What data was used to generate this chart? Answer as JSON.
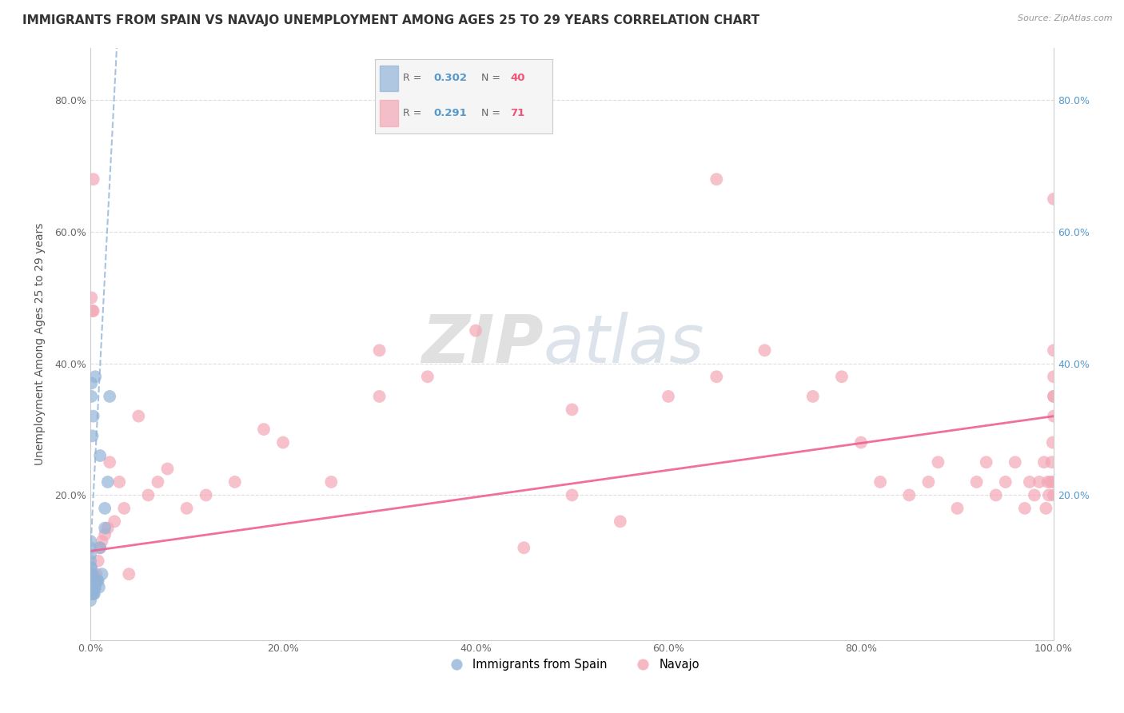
{
  "title": "IMMIGRANTS FROM SPAIN VS NAVAJO UNEMPLOYMENT AMONG AGES 25 TO 29 YEARS CORRELATION CHART",
  "source": "Source: ZipAtlas.com",
  "ylabel": "Unemployment Among Ages 25 to 29 years",
  "xlim": [
    0.0,
    1.0
  ],
  "ylim": [
    -0.02,
    0.88
  ],
  "xticks": [
    0.0,
    0.2,
    0.4,
    0.6,
    0.8,
    1.0
  ],
  "xticklabels": [
    "0.0%",
    "20.0%",
    "40.0%",
    "60.0%",
    "80.0%",
    "100.0%"
  ],
  "ytick_vals": [
    0.0,
    0.2,
    0.4,
    0.6,
    0.8
  ],
  "yticklabels_left": [
    "",
    "20.0%",
    "40.0%",
    "60.0%",
    "80.0%"
  ],
  "yticklabels_right": [
    "",
    "20.0%",
    "40.0%",
    "60.0%",
    "80.0%"
  ],
  "blue_color": "#92B4D8",
  "pink_color": "#F4A7B5",
  "trendline_blue_color": "#92B4D8",
  "trendline_pink_color": "#F06090",
  "watermark_zip": "ZIP",
  "watermark_atlas": "atlas",
  "grid_color": "#DDDDDD",
  "bg_color": "#FFFFFF",
  "title_fontsize": 11,
  "axis_fontsize": 10,
  "tick_fontsize": 9,
  "blue_scatter_x": [
    0.0,
    0.0,
    0.0,
    0.0,
    0.0,
    0.0,
    0.0,
    0.0,
    0.0,
    0.0,
    0.001,
    0.001,
    0.001,
    0.001,
    0.001,
    0.002,
    0.002,
    0.002,
    0.002,
    0.003,
    0.003,
    0.004,
    0.004,
    0.005,
    0.006,
    0.007,
    0.008,
    0.009,
    0.01,
    0.012,
    0.015,
    0.018,
    0.02,
    0.015,
    0.01,
    0.005,
    0.003,
    0.002,
    0.001,
    0.001
  ],
  "blue_scatter_y": [
    0.05,
    0.06,
    0.07,
    0.08,
    0.09,
    0.1,
    0.11,
    0.12,
    0.13,
    0.04,
    0.05,
    0.06,
    0.07,
    0.08,
    0.09,
    0.05,
    0.06,
    0.07,
    0.08,
    0.05,
    0.06,
    0.05,
    0.06,
    0.06,
    0.07,
    0.07,
    0.07,
    0.06,
    0.26,
    0.08,
    0.18,
    0.22,
    0.35,
    0.15,
    0.12,
    0.38,
    0.32,
    0.29,
    0.35,
    0.37
  ],
  "pink_scatter_x": [
    0.002,
    0.002,
    0.003,
    0.005,
    0.006,
    0.008,
    0.01,
    0.012,
    0.015,
    0.018,
    0.02,
    0.025,
    0.03,
    0.035,
    0.04,
    0.05,
    0.06,
    0.07,
    0.08,
    0.1,
    0.12,
    0.15,
    0.18,
    0.2,
    0.25,
    0.3,
    0.35,
    0.4,
    0.45,
    0.5,
    0.55,
    0.6,
    0.65,
    0.7,
    0.75,
    0.78,
    0.8,
    0.82,
    0.85,
    0.87,
    0.88,
    0.9,
    0.92,
    0.93,
    0.94,
    0.95,
    0.96,
    0.97,
    0.975,
    0.98,
    0.985,
    0.99,
    0.992,
    0.994,
    0.995,
    0.997,
    0.998,
    0.999,
    1.0,
    1.0,
    1.0,
    1.0,
    1.0,
    1.0,
    1.0,
    1.0,
    0.003,
    0.001,
    0.3,
    0.5,
    0.65
  ],
  "pink_scatter_y": [
    0.48,
    0.08,
    0.48,
    0.07,
    0.08,
    0.1,
    0.12,
    0.13,
    0.14,
    0.15,
    0.25,
    0.16,
    0.22,
    0.18,
    0.08,
    0.32,
    0.2,
    0.22,
    0.24,
    0.18,
    0.2,
    0.22,
    0.3,
    0.28,
    0.22,
    0.42,
    0.38,
    0.45,
    0.12,
    0.2,
    0.16,
    0.35,
    0.38,
    0.42,
    0.35,
    0.38,
    0.28,
    0.22,
    0.2,
    0.22,
    0.25,
    0.18,
    0.22,
    0.25,
    0.2,
    0.22,
    0.25,
    0.18,
    0.22,
    0.2,
    0.22,
    0.25,
    0.18,
    0.22,
    0.2,
    0.22,
    0.25,
    0.28,
    0.32,
    0.35,
    0.2,
    0.22,
    0.35,
    0.38,
    0.42,
    0.65,
    0.68,
    0.5,
    0.35,
    0.33,
    0.68
  ],
  "pink_trendline_x": [
    0.0,
    1.0
  ],
  "pink_trendline_y": [
    0.115,
    0.32
  ],
  "blue_trendline_x0": 0.0,
  "blue_trendline_y0": 0.115,
  "blue_trendline_slope": 28.0
}
